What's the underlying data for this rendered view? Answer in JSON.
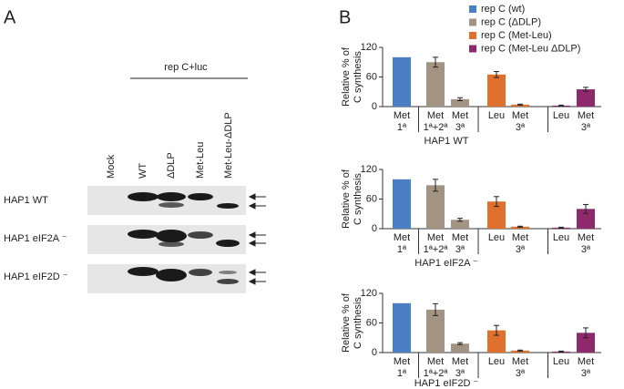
{
  "panel_labels": [
    "A",
    "B"
  ],
  "panel_a": {
    "group_label": "rep C+luc",
    "lanes": [
      "Mock",
      "WT",
      "ΔDLP",
      "Met-Leu",
      "Met-Leu-ΔDLP"
    ],
    "rows": [
      "HAP1 WT",
      "HAP1 eIF2A ⁻",
      "HAP1 eIF2D ⁻"
    ]
  },
  "chart_data": [
    {
      "type": "bar",
      "title": "HAP1 WT",
      "ylabel": [
        "Relative % of",
        "C synthesis"
      ],
      "categories": [
        [
          "Met",
          "1ª"
        ],
        [
          "Met",
          "1ª+2ª"
        ],
        [
          "Met",
          "3ª"
        ],
        [
          "Leu"
        ],
        [
          "Met",
          "3ª"
        ],
        [
          "Leu"
        ],
        [
          "Met",
          "3ª"
        ]
      ],
      "ylim": [
        0,
        120
      ],
      "yticks": [
        0,
        60,
        120
      ],
      "series": [
        {
          "name": "rep C (wt)",
          "color": "#4a7fc6",
          "values": [
            100,
            null,
            null,
            null,
            null,
            null,
            null
          ],
          "errors": [
            0,
            null,
            null,
            null,
            null,
            null,
            null
          ]
        },
        {
          "name": "rep C (ΔDLP)",
          "color": "#a39383",
          "values": [
            null,
            90,
            15,
            null,
            null,
            null,
            null
          ],
          "errors": [
            null,
            10,
            3,
            null,
            null,
            null,
            null
          ]
        },
        {
          "name": "rep C (Met-Leu)",
          "color": "#e0702e",
          "values": [
            null,
            null,
            null,
            65,
            4,
            null,
            null
          ],
          "errors": [
            null,
            null,
            null,
            6,
            1,
            null,
            null
          ]
        },
        {
          "name": "rep C (Met-Leu ΔDLP)",
          "color": "#8e2a6c",
          "values": [
            null,
            null,
            null,
            null,
            null,
            2,
            35
          ],
          "errors": [
            null,
            null,
            null,
            null,
            null,
            1,
            4
          ]
        }
      ]
    },
    {
      "type": "bar",
      "title": "HAP1 eIF2A ⁻",
      "ylabel": [
        "Relative % of",
        "C synthesis"
      ],
      "categories": [
        [
          "Met",
          "1ª"
        ],
        [
          "Met",
          "1ª+2ª"
        ],
        [
          "Met",
          "3ª"
        ],
        [
          "Leu"
        ],
        [
          "Met",
          "3ª"
        ],
        [
          "Leu"
        ],
        [
          "Met",
          "3ª"
        ]
      ],
      "ylim": [
        0,
        120
      ],
      "yticks": [
        0,
        60,
        120
      ],
      "series": [
        {
          "color": "#4a7fc6",
          "values": [
            100,
            null,
            null,
            null,
            null,
            null,
            null
          ],
          "errors": [
            0,
            null,
            null,
            null,
            null,
            null,
            null
          ]
        },
        {
          "color": "#a39383",
          "values": [
            null,
            88,
            18,
            null,
            null,
            null,
            null
          ],
          "errors": [
            null,
            12,
            3,
            null,
            null,
            null,
            null
          ]
        },
        {
          "color": "#e0702e",
          "values": [
            null,
            null,
            null,
            55,
            4,
            null,
            null
          ],
          "errors": [
            null,
            null,
            null,
            10,
            1,
            null,
            null
          ]
        },
        {
          "color": "#8e2a6c",
          "values": [
            null,
            null,
            null,
            null,
            null,
            2,
            40
          ],
          "errors": [
            null,
            null,
            null,
            null,
            null,
            1,
            9
          ]
        }
      ]
    },
    {
      "type": "bar",
      "title": "HAP1 eIF2D ⁻",
      "ylabel": [
        "Relative % of",
        "C synthesis"
      ],
      "categories": [
        [
          "Met",
          "1ª"
        ],
        [
          "Met",
          "1ª+2ª"
        ],
        [
          "Met",
          "3ª"
        ],
        [
          "Leu"
        ],
        [
          "Met",
          "3ª"
        ],
        [
          "Leu"
        ],
        [
          "Met",
          "3ª"
        ]
      ],
      "ylim": [
        0,
        120
      ],
      "yticks": [
        0,
        60,
        120
      ],
      "series": [
        {
          "color": "#4a7fc6",
          "values": [
            100,
            null,
            null,
            null,
            null,
            null,
            null
          ],
          "errors": [
            0,
            null,
            null,
            null,
            null,
            null,
            null
          ]
        },
        {
          "color": "#a39383",
          "values": [
            null,
            87,
            18,
            null,
            null,
            null,
            null
          ],
          "errors": [
            null,
            12,
            2,
            null,
            null,
            null,
            null
          ]
        },
        {
          "color": "#e0702e",
          "values": [
            null,
            null,
            null,
            45,
            4,
            null,
            null
          ],
          "errors": [
            null,
            null,
            null,
            10,
            1,
            null,
            null
          ]
        },
        {
          "color": "#8e2a6c",
          "values": [
            null,
            null,
            null,
            null,
            null,
            2,
            40
          ],
          "errors": [
            null,
            null,
            null,
            null,
            null,
            1,
            10
          ]
        }
      ]
    }
  ]
}
